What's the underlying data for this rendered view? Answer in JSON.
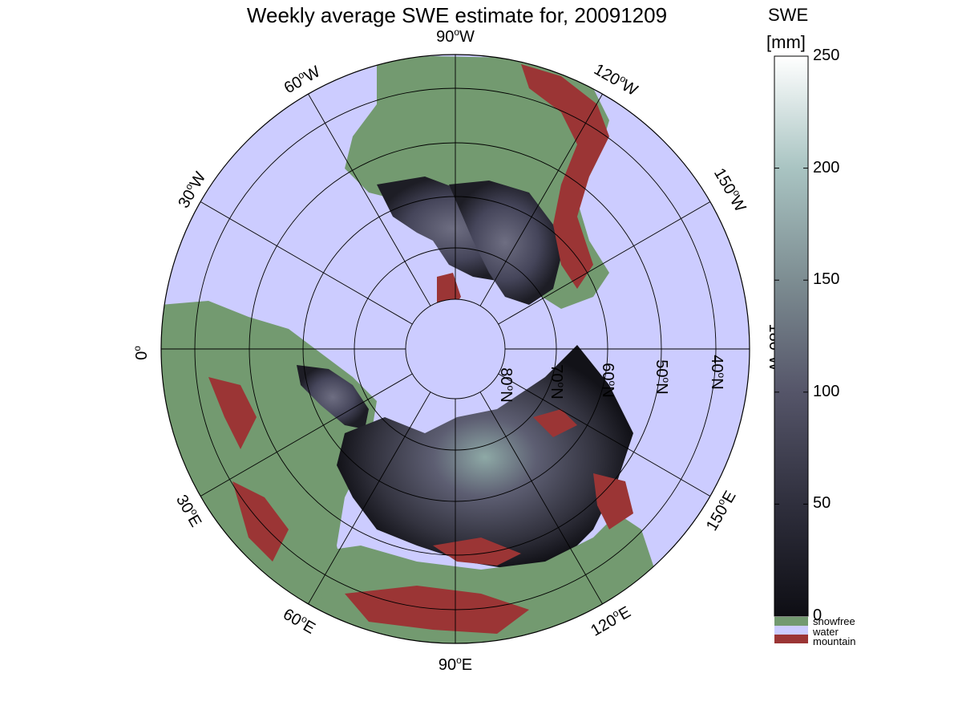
{
  "map": {
    "title": "Weekly average SWE estimate for, 20091209",
    "projection": "north polar stereographic",
    "longitude_labels": [
      "90oW",
      "60oW",
      "30oW",
      "0o",
      "30oE",
      "60oE",
      "90oE",
      "120oE",
      "150oE",
      "180oW",
      "150oW",
      "120oW"
    ],
    "latitude_labels": [
      "80oN",
      "70oN",
      "60oN",
      "50oN",
      "40oN"
    ],
    "colors": {
      "snowfree": "#739a70",
      "water": "#ccccff",
      "mountain": "#9b3535",
      "swe_low": "#0e0e14",
      "swe_high": "#ffffff"
    }
  },
  "colorbar": {
    "title_line1": "SWE",
    "title_line2": "[mm]",
    "ticks": [
      "0",
      "50",
      "100",
      "150",
      "200",
      "250"
    ],
    "tick_values": [
      0,
      50,
      100,
      150,
      200,
      250
    ],
    "range": [
      0,
      250
    ],
    "categories": [
      {
        "label": "snowfree",
        "color": "#739a70"
      },
      {
        "label": "water",
        "color": "#ccccff"
      },
      {
        "label": "mountain",
        "color": "#9b3535"
      }
    ]
  }
}
